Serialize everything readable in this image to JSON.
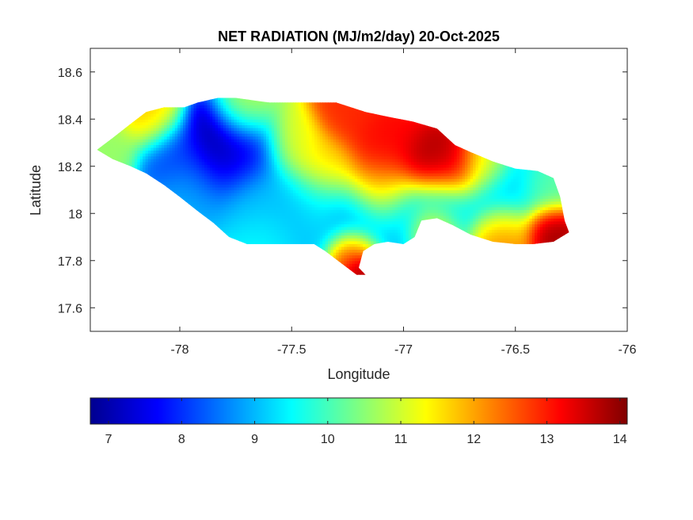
{
  "chart_data": {
    "type": "heatmap",
    "title": "NET RADIATION (MJ/m2/day) 20-Oct-2025",
    "xlabel": "Longitude",
    "ylabel": "Latitude",
    "xlim": [
      -78.4,
      -76.0
    ],
    "ylim": [
      17.5,
      18.7
    ],
    "x_ticks": [
      -78,
      -77.5,
      -77,
      -76.5,
      -76
    ],
    "x_tick_labels": [
      "-78",
      "-77.5",
      "-77",
      "-76.5",
      "-76"
    ],
    "y_ticks": [
      17.6,
      17.8,
      18.0,
      18.2,
      18.4,
      18.6
    ],
    "y_tick_labels": [
      "17.6",
      "17.8",
      "18",
      "18.2",
      "18.4",
      "18.6"
    ],
    "colormap": "jet",
    "colorbar": {
      "location": "bottom",
      "clim": [
        6.75,
        14.1
      ],
      "ticks": [
        7,
        8,
        9,
        10,
        11,
        12,
        13,
        14
      ],
      "tick_labels": [
        "7",
        "8",
        "9",
        "10",
        "11",
        "12",
        "13",
        "14"
      ]
    },
    "region_outline": [
      [
        -78.37,
        18.27
      ],
      [
        -78.3,
        18.32
      ],
      [
        -78.22,
        18.38
      ],
      [
        -78.15,
        18.43
      ],
      [
        -78.07,
        18.45
      ],
      [
        -77.98,
        18.45
      ],
      [
        -77.92,
        18.47
      ],
      [
        -77.83,
        18.49
      ],
      [
        -77.75,
        18.49
      ],
      [
        -77.6,
        18.47
      ],
      [
        -77.45,
        18.47
      ],
      [
        -77.3,
        18.47
      ],
      [
        -77.17,
        18.43
      ],
      [
        -77.07,
        18.41
      ],
      [
        -76.96,
        18.39
      ],
      [
        -76.85,
        18.36
      ],
      [
        -76.77,
        18.29
      ],
      [
        -76.7,
        18.26
      ],
      [
        -76.6,
        18.22
      ],
      [
        -76.5,
        18.19
      ],
      [
        -76.4,
        18.18
      ],
      [
        -76.33,
        18.15
      ],
      [
        -76.3,
        18.07
      ],
      [
        -76.28,
        17.97
      ],
      [
        -76.26,
        17.92
      ],
      [
        -76.33,
        17.88
      ],
      [
        -76.42,
        17.87
      ],
      [
        -76.5,
        17.87
      ],
      [
        -76.6,
        17.88
      ],
      [
        -76.7,
        17.91
      ],
      [
        -76.78,
        17.95
      ],
      [
        -76.85,
        17.98
      ],
      [
        -76.92,
        17.97
      ],
      [
        -76.95,
        17.9
      ],
      [
        -77.0,
        17.87
      ],
      [
        -77.07,
        17.88
      ],
      [
        -77.13,
        17.87
      ],
      [
        -77.18,
        17.84
      ],
      [
        -77.2,
        17.77
      ],
      [
        -77.17,
        17.74
      ],
      [
        -77.21,
        17.74
      ],
      [
        -77.28,
        17.79
      ],
      [
        -77.35,
        17.84
      ],
      [
        -77.4,
        17.87
      ],
      [
        -77.5,
        17.87
      ],
      [
        -77.6,
        17.87
      ],
      [
        -77.7,
        17.87
      ],
      [
        -77.78,
        17.9
      ],
      [
        -77.85,
        17.96
      ],
      [
        -77.92,
        18.01
      ],
      [
        -78.0,
        18.07
      ],
      [
        -78.07,
        18.12
      ],
      [
        -78.15,
        18.17
      ],
      [
        -78.22,
        18.2
      ],
      [
        -78.3,
        18.23
      ]
    ],
    "value_centers": [
      {
        "lon": -77.82,
        "lat": 18.26,
        "value": 6.8,
        "spread": 0.1
      },
      {
        "lon": -77.7,
        "lat": 18.27,
        "value": 7.6,
        "spread": 0.09
      },
      {
        "lon": -78.05,
        "lat": 18.25,
        "value": 8.0,
        "spread": 0.08
      },
      {
        "lon": -77.95,
        "lat": 18.12,
        "value": 8.9,
        "spread": 0.1
      },
      {
        "lon": -77.65,
        "lat": 18.08,
        "value": 9.1,
        "spread": 0.1
      },
      {
        "lon": -77.55,
        "lat": 17.95,
        "value": 8.8,
        "spread": 0.1
      },
      {
        "lon": -77.4,
        "lat": 18.05,
        "value": 9.4,
        "spread": 0.1
      },
      {
        "lon": -77.2,
        "lat": 17.97,
        "value": 8.6,
        "spread": 0.09
      },
      {
        "lon": -77.0,
        "lat": 17.99,
        "value": 8.9,
        "spread": 0.09
      },
      {
        "lon": -76.82,
        "lat": 18.05,
        "value": 9.5,
        "spread": 0.08
      },
      {
        "lon": -76.55,
        "lat": 18.08,
        "value": 9.0,
        "spread": 0.1
      },
      {
        "lon": -76.37,
        "lat": 18.1,
        "value": 10.2,
        "spread": 0.07
      },
      {
        "lon": -78.3,
        "lat": 18.27,
        "value": 10.6,
        "spread": 0.07
      },
      {
        "lon": -78.13,
        "lat": 18.38,
        "value": 11.8,
        "spread": 0.07
      },
      {
        "lon": -77.5,
        "lat": 18.3,
        "value": 11.2,
        "spread": 0.08
      },
      {
        "lon": -77.35,
        "lat": 18.2,
        "value": 11.8,
        "spread": 0.08
      },
      {
        "lon": -77.25,
        "lat": 18.43,
        "value": 12.9,
        "spread": 0.08
      },
      {
        "lon": -77.08,
        "lat": 18.3,
        "value": 13.2,
        "spread": 0.1
      },
      {
        "lon": -76.88,
        "lat": 18.22,
        "value": 13.9,
        "spread": 0.08
      },
      {
        "lon": -76.78,
        "lat": 18.2,
        "value": 13.6,
        "spread": 0.07
      },
      {
        "lon": -77.1,
        "lat": 18.1,
        "value": 12.3,
        "spread": 0.09
      },
      {
        "lon": -77.22,
        "lat": 17.84,
        "value": 13.4,
        "spread": 0.06
      },
      {
        "lon": -77.18,
        "lat": 17.76,
        "value": 14.0,
        "spread": 0.04
      },
      {
        "lon": -76.35,
        "lat": 17.94,
        "value": 14.0,
        "spread": 0.06
      },
      {
        "lon": -76.55,
        "lat": 17.93,
        "value": 12.5,
        "spread": 0.07
      },
      {
        "lon": -76.88,
        "lat": 17.94,
        "value": 11.9,
        "spread": 0.06
      },
      {
        "lon": -77.7,
        "lat": 18.42,
        "value": 11.0,
        "spread": 0.07
      },
      {
        "lon": -77.6,
        "lat": 17.9,
        "value": 9.8,
        "spread": 0.08
      },
      {
        "lon": -76.65,
        "lat": 18.2,
        "value": 11.5,
        "spread": 0.07
      }
    ],
    "base_value": 10.5
  },
  "colors": {
    "axes": "#262626",
    "background": "#ffffff"
  }
}
